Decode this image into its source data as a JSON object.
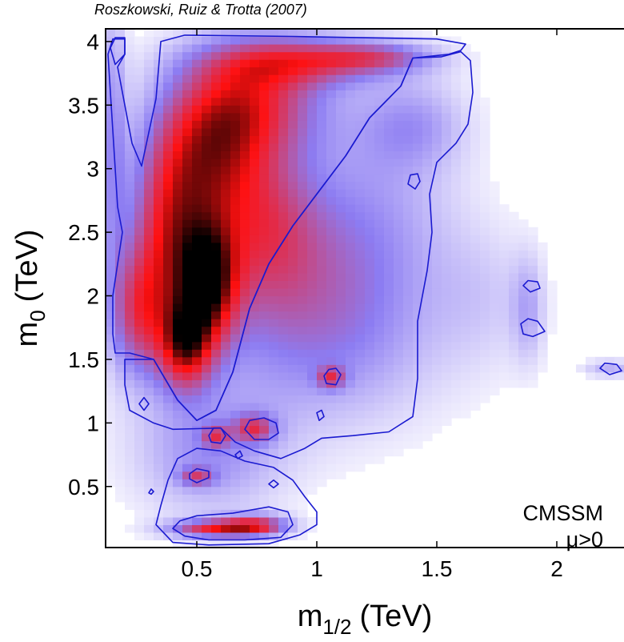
{
  "chart_data": {
    "type": "heatmap",
    "credit": "Roszkowski, Ruiz & Trotta (2007)",
    "xlabel": {
      "main": "m",
      "sub": "1/2",
      "unit": "(TeV)"
    },
    "ylabel": {
      "main": "m",
      "sub": "0",
      "unit": "(TeV)"
    },
    "xlim": [
      0.12,
      2.28
    ],
    "ylim": [
      0.02,
      4.1
    ],
    "x_ticks": [
      {
        "value": 0.5,
        "label": "0.5"
      },
      {
        "value": 1,
        "label": "1"
      },
      {
        "value": 1.5,
        "label": "1.5"
      },
      {
        "value": 2,
        "label": "2"
      }
    ],
    "y_ticks": [
      {
        "value": 0.5,
        "label": "0.5"
      },
      {
        "value": 1,
        "label": "1"
      },
      {
        "value": 1.5,
        "label": "1.5"
      },
      {
        "value": 2,
        "label": "2"
      },
      {
        "value": 2.5,
        "label": "2.5"
      },
      {
        "value": 3,
        "label": "3"
      },
      {
        "value": 3.5,
        "label": "3.5"
      },
      {
        "value": 4,
        "label": "4"
      }
    ],
    "annotation": [
      "CMSSM",
      "μ>0"
    ],
    "grid": false,
    "colors": {
      "low": "#ffffff",
      "mid": "#8c7cf2",
      "high": "#ff1010",
      "peak": "#000000",
      "contour": "#1a1ad0"
    },
    "density_model": {
      "cell_size": [
        0.04,
        0.06
      ],
      "components": [
        {
          "x": 0.73,
          "y": 3.55,
          "sx": 0.22,
          "sy": 0.32,
          "w": 0.78
        },
        {
          "x": 0.95,
          "y": 3.85,
          "sx": 0.28,
          "sy": 0.14,
          "w": 0.62
        },
        {
          "x": 1.25,
          "y": 3.88,
          "sx": 0.18,
          "sy": 0.08,
          "w": 0.45
        },
        {
          "x": 0.55,
          "y": 3.1,
          "sx": 0.17,
          "sy": 0.4,
          "w": 0.8
        },
        {
          "x": 0.38,
          "y": 2.4,
          "sx": 0.12,
          "sy": 0.55,
          "w": 0.85
        },
        {
          "x": 0.55,
          "y": 2.1,
          "sx": 0.09,
          "sy": 0.35,
          "w": 0.95
        },
        {
          "x": 0.45,
          "y": 1.6,
          "sx": 0.08,
          "sy": 0.25,
          "w": 0.85
        },
        {
          "x": 0.25,
          "y": 1.85,
          "sx": 0.08,
          "sy": 0.35,
          "w": 0.6
        },
        {
          "x": 0.78,
          "y": 2.55,
          "sx": 0.16,
          "sy": 0.45,
          "w": 0.5
        },
        {
          "x": 0.9,
          "y": 2.2,
          "sx": 0.3,
          "sy": 0.6,
          "w": 0.32
        },
        {
          "x": 1.05,
          "y": 1.6,
          "sx": 0.35,
          "sy": 0.5,
          "w": 0.3
        },
        {
          "x": 1.25,
          "y": 2.6,
          "sx": 0.25,
          "sy": 0.6,
          "w": 0.28
        },
        {
          "x": 1.4,
          "y": 3.35,
          "sx": 0.16,
          "sy": 0.25,
          "w": 0.33
        },
        {
          "x": 0.55,
          "y": 0.75,
          "sx": 0.22,
          "sy": 0.35,
          "w": 0.4
        },
        {
          "x": 0.58,
          "y": 0.17,
          "sx": 0.14,
          "sy": 0.05,
          "w": 0.85
        },
        {
          "x": 0.75,
          "y": 0.2,
          "sx": 0.1,
          "sy": 0.06,
          "w": 0.7
        },
        {
          "x": 0.74,
          "y": 0.96,
          "sx": 0.06,
          "sy": 0.08,
          "w": 0.6
        },
        {
          "x": 1.06,
          "y": 1.36,
          "sx": 0.04,
          "sy": 0.06,
          "w": 0.55
        },
        {
          "x": 0.5,
          "y": 0.58,
          "sx": 0.05,
          "sy": 0.05,
          "w": 0.5
        },
        {
          "x": 0.58,
          "y": 0.9,
          "sx": 0.04,
          "sy": 0.06,
          "w": 0.5
        },
        {
          "x": 0.15,
          "y": 3.25,
          "sx": 0.04,
          "sy": 0.9,
          "w": 0.38
        },
        {
          "x": 1.88,
          "y": 1.9,
          "sx": 0.05,
          "sy": 0.3,
          "w": 0.28
        },
        {
          "x": 2.22,
          "y": 1.43,
          "sx": 0.08,
          "sy": 0.05,
          "w": 0.3
        },
        {
          "x": 1.7,
          "y": 2.0,
          "sx": 0.15,
          "sy": 0.4,
          "w": 0.15
        }
      ]
    },
    "contours": [
      [
        [
          0.15,
          4.02
        ],
        [
          0.2,
          4.02
        ],
        [
          0.2,
          3.9
        ],
        [
          0.17,
          3.8
        ],
        [
          0.2,
          3.5
        ],
        [
          0.23,
          3.2
        ],
        [
          0.27,
          3.02
        ],
        [
          0.33,
          3.55
        ],
        [
          0.35,
          4.0
        ],
        [
          0.45,
          4.05
        ],
        [
          0.9,
          4.04
        ],
        [
          1.5,
          4.02
        ],
        [
          1.62,
          3.98
        ],
        [
          1.6,
          3.93
        ],
        [
          1.55,
          3.9
        ],
        [
          1.4,
          3.87
        ],
        [
          1.35,
          3.65
        ],
        [
          1.22,
          3.4
        ],
        [
          1.12,
          3.1
        ],
        [
          1.02,
          2.85
        ],
        [
          0.9,
          2.55
        ],
        [
          0.8,
          2.25
        ],
        [
          0.72,
          1.9
        ],
        [
          0.65,
          1.4
        ],
        [
          0.58,
          1.1
        ],
        [
          0.5,
          1.02
        ],
        [
          0.42,
          1.18
        ],
        [
          0.32,
          1.5
        ],
        [
          0.22,
          1.55
        ],
        [
          0.16,
          1.55
        ],
        [
          0.15,
          1.7
        ],
        [
          0.15,
          2.0
        ],
        [
          0.19,
          2.5
        ],
        [
          0.17,
          2.7
        ],
        [
          0.16,
          3.0
        ],
        [
          0.14,
          3.6
        ],
        [
          0.13,
          3.9
        ],
        [
          0.15,
          4.02
        ]
      ],
      [
        [
          0.2,
          1.5
        ],
        [
          0.2,
          1.3
        ],
        [
          0.22,
          1.1
        ],
        [
          0.32,
          1.0
        ],
        [
          0.4,
          0.95
        ],
        [
          0.6,
          0.96
        ],
        [
          0.66,
          0.85
        ],
        [
          0.74,
          0.78
        ],
        [
          0.85,
          0.72
        ],
        [
          0.95,
          0.8
        ],
        [
          1.02,
          0.88
        ],
        [
          1.15,
          0.9
        ],
        [
          1.3,
          0.93
        ],
        [
          1.4,
          1.05
        ],
        [
          1.42,
          1.35
        ],
        [
          1.42,
          1.8
        ],
        [
          1.46,
          2.2
        ],
        [
          1.48,
          2.5
        ],
        [
          1.47,
          2.8
        ],
        [
          1.5,
          3.05
        ],
        [
          1.58,
          3.2
        ],
        [
          1.63,
          3.35
        ],
        [
          1.65,
          3.6
        ],
        [
          1.64,
          3.85
        ],
        [
          1.6,
          3.92
        ],
        [
          1.52,
          3.88
        ],
        [
          1.4,
          3.87
        ],
        [
          1.35,
          3.65
        ],
        [
          1.22,
          3.4
        ],
        [
          1.12,
          3.1
        ],
        [
          1.02,
          2.85
        ],
        [
          0.9,
          2.55
        ],
        [
          0.8,
          2.25
        ],
        [
          0.72,
          1.9
        ],
        [
          0.65,
          1.4
        ],
        [
          0.58,
          1.1
        ],
        [
          0.5,
          1.02
        ],
        [
          0.42,
          1.18
        ],
        [
          0.32,
          1.5
        ],
        [
          0.2,
          1.5
        ]
      ],
      [
        [
          0.33,
          0.2
        ],
        [
          0.35,
          0.35
        ],
        [
          0.38,
          0.55
        ],
        [
          0.42,
          0.72
        ],
        [
          0.5,
          0.8
        ],
        [
          0.6,
          0.78
        ],
        [
          0.7,
          0.7
        ],
        [
          0.82,
          0.65
        ],
        [
          0.9,
          0.55
        ],
        [
          0.95,
          0.42
        ],
        [
          1.0,
          0.3
        ],
        [
          1.0,
          0.2
        ],
        [
          0.93,
          0.12
        ],
        [
          0.8,
          0.05
        ],
        [
          0.55,
          0.04
        ],
        [
          0.4,
          0.06
        ],
        [
          0.33,
          0.2
        ]
      ],
      [
        [
          0.4,
          0.17
        ],
        [
          0.43,
          0.23
        ],
        [
          0.5,
          0.27
        ],
        [
          0.65,
          0.29
        ],
        [
          0.8,
          0.34
        ],
        [
          0.88,
          0.3
        ],
        [
          0.9,
          0.2
        ],
        [
          0.85,
          0.1
        ],
        [
          0.7,
          0.08
        ],
        [
          0.55,
          0.08
        ],
        [
          0.45,
          0.11
        ],
        [
          0.4,
          0.17
        ]
      ],
      [
        [
          0.7,
          0.95
        ],
        [
          0.72,
          1.02
        ],
        [
          0.78,
          1.04
        ],
        [
          0.83,
          1.0
        ],
        [
          0.84,
          0.92
        ],
        [
          0.8,
          0.87
        ],
        [
          0.74,
          0.87
        ],
        [
          0.7,
          0.95
        ]
      ],
      [
        [
          0.55,
          0.9
        ],
        [
          0.57,
          0.96
        ],
        [
          0.6,
          0.96
        ],
        [
          0.62,
          0.9
        ],
        [
          0.6,
          0.84
        ],
        [
          0.56,
          0.85
        ],
        [
          0.55,
          0.9
        ]
      ],
      [
        [
          0.47,
          0.6
        ],
        [
          0.5,
          0.64
        ],
        [
          0.55,
          0.62
        ],
        [
          0.55,
          0.57
        ],
        [
          0.5,
          0.53
        ],
        [
          0.47,
          0.56
        ],
        [
          0.47,
          0.6
        ]
      ],
      [
        [
          0.26,
          1.15
        ],
        [
          0.28,
          1.2
        ],
        [
          0.3,
          1.15
        ],
        [
          0.28,
          1.1
        ],
        [
          0.26,
          1.15
        ]
      ],
      [
        [
          1.0,
          1.08
        ],
        [
          1.02,
          1.1
        ],
        [
          1.03,
          1.05
        ],
        [
          1.01,
          1.02
        ],
        [
          1.0,
          1.08
        ]
      ],
      [
        [
          1.03,
          1.37
        ],
        [
          1.05,
          1.42
        ],
        [
          1.08,
          1.43
        ],
        [
          1.1,
          1.38
        ],
        [
          1.08,
          1.3
        ],
        [
          1.04,
          1.31
        ],
        [
          1.03,
          1.37
        ]
      ],
      [
        [
          0.66,
          0.75
        ],
        [
          0.68,
          0.78
        ],
        [
          0.69,
          0.74
        ],
        [
          0.67,
          0.72
        ],
        [
          0.66,
          0.75
        ]
      ],
      [
        [
          0.8,
          0.52
        ],
        [
          0.82,
          0.55
        ],
        [
          0.84,
          0.52
        ],
        [
          0.82,
          0.49
        ],
        [
          0.8,
          0.52
        ]
      ],
      [
        [
          1.86,
          2.08
        ],
        [
          1.88,
          2.12
        ],
        [
          1.92,
          2.11
        ],
        [
          1.93,
          2.06
        ],
        [
          1.89,
          2.03
        ],
        [
          1.86,
          2.08
        ]
      ],
      [
        [
          1.85,
          1.78
        ],
        [
          1.88,
          1.82
        ],
        [
          1.92,
          1.8
        ],
        [
          1.95,
          1.72
        ],
        [
          1.9,
          1.68
        ],
        [
          1.86,
          1.7
        ],
        [
          1.85,
          1.78
        ]
      ],
      [
        [
          2.18,
          1.43
        ],
        [
          2.2,
          1.47
        ],
        [
          2.25,
          1.46
        ],
        [
          2.27,
          1.41
        ],
        [
          2.22,
          1.38
        ],
        [
          2.18,
          1.43
        ]
      ],
      [
        [
          1.38,
          2.88
        ],
        [
          1.39,
          2.95
        ],
        [
          1.42,
          2.96
        ],
        [
          1.43,
          2.9
        ],
        [
          1.41,
          2.84
        ],
        [
          1.38,
          2.88
        ]
      ],
      [
        [
          0.3,
          0.45
        ],
        [
          0.31,
          0.48
        ],
        [
          0.32,
          0.46
        ],
        [
          0.31,
          0.44
        ],
        [
          0.3,
          0.45
        ]
      ],
      [
        [
          0.14,
          3.95
        ],
        [
          0.16,
          4.03
        ],
        [
          0.2,
          4.03
        ],
        [
          0.2,
          3.9
        ],
        [
          0.16,
          3.82
        ],
        [
          0.14,
          3.95
        ]
      ]
    ]
  }
}
